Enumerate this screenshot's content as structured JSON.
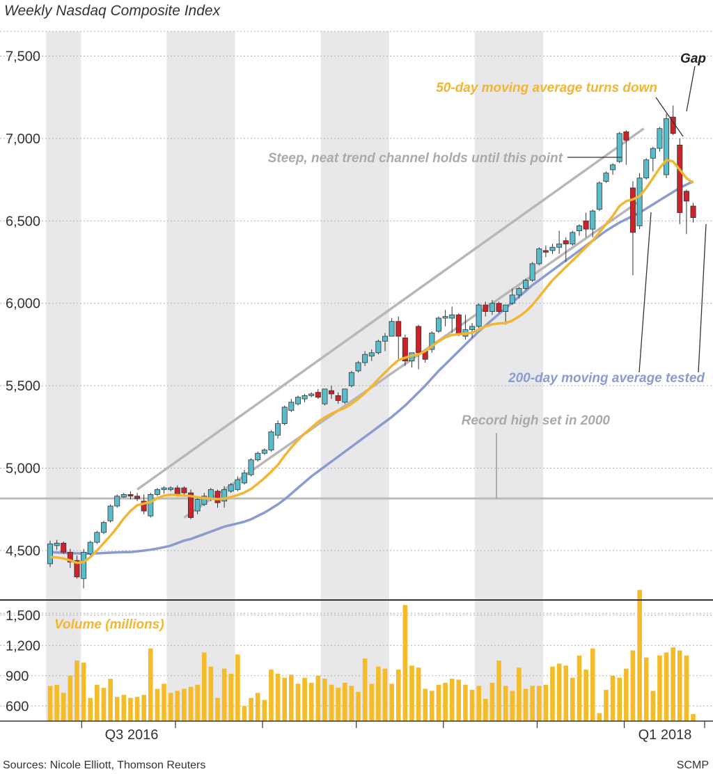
{
  "chart_data": {
    "type": "candlestick",
    "title": "Weekly Nasdaq Composite Index",
    "price_axis": {
      "ylim": [
        4200,
        7650
      ],
      "ticks": [
        4500,
        5000,
        5500,
        6000,
        6500,
        7000,
        7500
      ],
      "tick_labels": [
        "4,500",
        "5,000",
        "5,500",
        "6,000",
        "6,500",
        "7,000",
        "7,500"
      ]
    },
    "volume_axis": {
      "label": "Volume (millions)",
      "ylim": [
        450,
        1650
      ],
      "ticks": [
        600,
        900,
        1200,
        1500
      ],
      "tick_labels": [
        "600",
        "900",
        "1,200",
        "1,500"
      ]
    },
    "x_labels": [
      {
        "text": "Q3 2016",
        "week": 5
      },
      {
        "text": "Q1 2018",
        "week": 83
      }
    ],
    "period_shading": [
      [
        0,
        4
      ],
      [
        18,
        27
      ],
      [
        41,
        50
      ],
      [
        64,
        73
      ]
    ],
    "record_high": {
      "value": 4816,
      "label": "Record high set in 2000"
    },
    "trend_channel": {
      "upper": [
        [
          13,
          4870
        ],
        [
          88,
          7060
        ]
      ],
      "lower": [
        [
          20,
          4700
        ],
        [
          87,
          6610
        ]
      ]
    },
    "annotations": {
      "gap": "Gap",
      "ma50_turns": "50-day moving average turns down",
      "channel_holds": "Steep, neat trend channel holds until this point",
      "ma200_tested": "200-day moving average tested"
    },
    "colors": {
      "up": "#58bccb",
      "down": "#cc2229",
      "ma50": "#f2b632",
      "ma200": "#8a9bd0",
      "volume": "#f5bc2a",
      "shade": "#e8e8ea",
      "channel": "#b7b7b7",
      "text": "#333333"
    },
    "candles": [
      {
        "o": 4420,
        "h": 4560,
        "l": 4400,
        "c": 4540
      },
      {
        "o": 4530,
        "h": 4565,
        "l": 4505,
        "c": 4545
      },
      {
        "o": 4545,
        "h": 4555,
        "l": 4480,
        "c": 4490
      },
      {
        "o": 4490,
        "h": 4510,
        "l": 4395,
        "c": 4430
      },
      {
        "o": 4440,
        "h": 4470,
        "l": 4330,
        "c": 4340
      },
      {
        "o": 4330,
        "h": 4510,
        "l": 4270,
        "c": 4490
      },
      {
        "o": 4480,
        "h": 4560,
        "l": 4470,
        "c": 4550
      },
      {
        "o": 4550,
        "h": 4620,
        "l": 4540,
        "c": 4610
      },
      {
        "o": 4610,
        "h": 4680,
        "l": 4600,
        "c": 4670
      },
      {
        "o": 4680,
        "h": 4780,
        "l": 4670,
        "c": 4770
      },
      {
        "o": 4770,
        "h": 4840,
        "l": 4760,
        "c": 4830
      },
      {
        "o": 4825,
        "h": 4850,
        "l": 4820,
        "c": 4840
      },
      {
        "o": 4840,
        "h": 4860,
        "l": 4810,
        "c": 4830
      },
      {
        "o": 4830,
        "h": 4850,
        "l": 4800,
        "c": 4815
      },
      {
        "o": 4800,
        "h": 4840,
        "l": 4720,
        "c": 4740
      },
      {
        "o": 4710,
        "h": 4850,
        "l": 4700,
        "c": 4840
      },
      {
        "o": 4840,
        "h": 4880,
        "l": 4830,
        "c": 4870
      },
      {
        "o": 4870,
        "h": 4890,
        "l": 4845,
        "c": 4880
      },
      {
        "o": 4870,
        "h": 4890,
        "l": 4860,
        "c": 4880
      },
      {
        "o": 4880,
        "h": 4895,
        "l": 4830,
        "c": 4840
      },
      {
        "o": 4880,
        "h": 4890,
        "l": 4840,
        "c": 4850
      },
      {
        "o": 4850,
        "h": 4870,
        "l": 4690,
        "c": 4700
      },
      {
        "o": 4740,
        "h": 4830,
        "l": 4720,
        "c": 4810
      },
      {
        "o": 4780,
        "h": 4850,
        "l": 4770,
        "c": 4830
      },
      {
        "o": 4810,
        "h": 4880,
        "l": 4800,
        "c": 4870
      },
      {
        "o": 4860,
        "h": 4870,
        "l": 4760,
        "c": 4790
      },
      {
        "o": 4800,
        "h": 4890,
        "l": 4760,
        "c": 4870
      },
      {
        "o": 4860,
        "h": 4910,
        "l": 4850,
        "c": 4900
      },
      {
        "o": 4870,
        "h": 4950,
        "l": 4860,
        "c": 4930
      },
      {
        "o": 4910,
        "h": 4990,
        "l": 4900,
        "c": 4970
      },
      {
        "o": 4960,
        "h": 5060,
        "l": 4950,
        "c": 5050
      },
      {
        "o": 5050,
        "h": 5100,
        "l": 5040,
        "c": 5090
      },
      {
        "o": 5090,
        "h": 5120,
        "l": 5080,
        "c": 5110
      },
      {
        "o": 5110,
        "h": 5230,
        "l": 5100,
        "c": 5220
      },
      {
        "o": 5200,
        "h": 5290,
        "l": 5180,
        "c": 5270
      },
      {
        "o": 5270,
        "h": 5380,
        "l": 5260,
        "c": 5370
      },
      {
        "o": 5350,
        "h": 5420,
        "l": 5340,
        "c": 5400
      },
      {
        "o": 5390,
        "h": 5440,
        "l": 5380,
        "c": 5430
      },
      {
        "o": 5420,
        "h": 5450,
        "l": 5400,
        "c": 5440
      },
      {
        "o": 5440,
        "h": 5460,
        "l": 5430,
        "c": 5450
      },
      {
        "o": 5460,
        "h": 5480,
        "l": 5420,
        "c": 5430
      },
      {
        "o": 5390,
        "h": 5480,
        "l": 5380,
        "c": 5480
      },
      {
        "o": 5470,
        "h": 5500,
        "l": 5420,
        "c": 5450
      },
      {
        "o": 5440,
        "h": 5460,
        "l": 5390,
        "c": 5410
      },
      {
        "o": 5400,
        "h": 5480,
        "l": 5390,
        "c": 5480
      },
      {
        "o": 5500,
        "h": 5590,
        "l": 5490,
        "c": 5580
      },
      {
        "o": 5590,
        "h": 5650,
        "l": 5580,
        "c": 5640
      },
      {
        "o": 5640,
        "h": 5710,
        "l": 5620,
        "c": 5690
      },
      {
        "o": 5680,
        "h": 5720,
        "l": 5650,
        "c": 5700
      },
      {
        "o": 5700,
        "h": 5780,
        "l": 5690,
        "c": 5770
      },
      {
        "o": 5770,
        "h": 5820,
        "l": 5710,
        "c": 5800
      },
      {
        "o": 5800,
        "h": 5910,
        "l": 5800,
        "c": 5890
      },
      {
        "o": 5890,
        "h": 5920,
        "l": 5650,
        "c": 5800
      },
      {
        "o": 5790,
        "h": 5810,
        "l": 5620,
        "c": 5650
      },
      {
        "o": 5650,
        "h": 5700,
        "l": 5610,
        "c": 5700
      },
      {
        "o": 5860,
        "h": 5870,
        "l": 5600,
        "c": 5700
      },
      {
        "o": 5710,
        "h": 5720,
        "l": 5640,
        "c": 5660
      },
      {
        "o": 5720,
        "h": 5830,
        "l": 5700,
        "c": 5820
      },
      {
        "o": 5830,
        "h": 5920,
        "l": 5820,
        "c": 5910
      },
      {
        "o": 5910,
        "h": 5960,
        "l": 5860,
        "c": 5920
      },
      {
        "o": 5910,
        "h": 5980,
        "l": 5820,
        "c": 5930
      },
      {
        "o": 5930,
        "h": 5940,
        "l": 5800,
        "c": 5810
      },
      {
        "o": 5800,
        "h": 5930,
        "l": 5780,
        "c": 5840
      },
      {
        "o": 5840,
        "h": 5880,
        "l": 5790,
        "c": 5860
      },
      {
        "o": 5860,
        "h": 6000,
        "l": 5850,
        "c": 5990
      },
      {
        "o": 5990,
        "h": 6010,
        "l": 5920,
        "c": 5950
      },
      {
        "o": 5950,
        "h": 6020,
        "l": 5930,
        "c": 6000
      },
      {
        "o": 6000,
        "h": 6010,
        "l": 5940,
        "c": 5950
      },
      {
        "o": 5950,
        "h": 5990,
        "l": 5870,
        "c": 5990
      },
      {
        "o": 6000,
        "h": 6090,
        "l": 5990,
        "c": 6050
      },
      {
        "o": 6050,
        "h": 6100,
        "l": 6030,
        "c": 6090
      },
      {
        "o": 6090,
        "h": 6150,
        "l": 6080,
        "c": 6140
      },
      {
        "o": 6140,
        "h": 6250,
        "l": 6130,
        "c": 6240
      },
      {
        "o": 6240,
        "h": 6340,
        "l": 6230,
        "c": 6330
      },
      {
        "o": 6320,
        "h": 6350,
        "l": 6280,
        "c": 6310
      },
      {
        "o": 6320,
        "h": 6360,
        "l": 6300,
        "c": 6340
      },
      {
        "o": 6340,
        "h": 6440,
        "l": 6300,
        "c": 6360
      },
      {
        "o": 6380,
        "h": 6400,
        "l": 6250,
        "c": 6360
      },
      {
        "o": 6360,
        "h": 6440,
        "l": 6350,
        "c": 6430
      },
      {
        "o": 6440,
        "h": 6480,
        "l": 6410,
        "c": 6470
      },
      {
        "o": 6500,
        "h": 6550,
        "l": 6400,
        "c": 6450
      },
      {
        "o": 6450,
        "h": 6570,
        "l": 6400,
        "c": 6560
      },
      {
        "o": 6570,
        "h": 6740,
        "l": 6560,
        "c": 6730
      },
      {
        "o": 6740,
        "h": 6800,
        "l": 6730,
        "c": 6790
      },
      {
        "o": 6810,
        "h": 6850,
        "l": 6780,
        "c": 6840
      },
      {
        "o": 6860,
        "h": 7040,
        "l": 6850,
        "c": 7030
      },
      {
        "o": 7040,
        "h": 7050,
        "l": 6840,
        "c": 6990
      },
      {
        "o": 6700,
        "h": 6740,
        "l": 6170,
        "c": 6430
      },
      {
        "o": 6470,
        "h": 6790,
        "l": 6450,
        "c": 6760
      },
      {
        "o": 6760,
        "h": 6880,
        "l": 6750,
        "c": 6870
      },
      {
        "o": 6880,
        "h": 6950,
        "l": 6800,
        "c": 6940
      },
      {
        "o": 6940,
        "h": 7070,
        "l": 6920,
        "c": 7060
      },
      {
        "o": 6780,
        "h": 7150,
        "l": 6760,
        "c": 7120
      },
      {
        "o": 7130,
        "h": 7200,
        "l": 7020,
        "c": 7030
      },
      {
        "o": 6960,
        "h": 7000,
        "l": 6480,
        "c": 6550
      },
      {
        "o": 6680,
        "h": 6690,
        "l": 6420,
        "c": 6620
      },
      {
        "o": 6590,
        "h": 6610,
        "l": 6490,
        "c": 6520
      }
    ],
    "ma50": [
      4460,
      4458,
      4452,
      4440,
      4425,
      4430,
      4460,
      4500,
      4545,
      4590,
      4640,
      4695,
      4740,
      4775,
      4785,
      4795,
      4818,
      4833,
      4839,
      4836,
      4834,
      4830,
      4824,
      4818,
      4815,
      4812,
      4815,
      4825,
      4837,
      4852,
      4874,
      4905,
      4940,
      4978,
      5020,
      5075,
      5125,
      5170,
      5210,
      5245,
      5280,
      5308,
      5330,
      5350,
      5365,
      5390,
      5420,
      5455,
      5495,
      5540,
      5580,
      5620,
      5655,
      5670,
      5682,
      5690,
      5710,
      5740,
      5770,
      5793,
      5808,
      5812,
      5815,
      5822,
      5840,
      5860,
      5872,
      5878,
      5880,
      5895,
      5920,
      5950,
      5990,
      6040,
      6090,
      6140,
      6180,
      6220,
      6260,
      6300,
      6340,
      6380,
      6430,
      6480,
      6530,
      6590,
      6620,
      6630,
      6650,
      6700,
      6760,
      6820,
      6870,
      6860,
      6810,
      6760,
      6730
    ],
    "ma200": [
      4490,
      4488,
      4486,
      4484,
      4483,
      4482,
      4482,
      4483,
      4485,
      4487,
      4489,
      4490,
      4491,
      4495,
      4500,
      4505,
      4512,
      4520,
      4530,
      4545,
      4560,
      4570,
      4585,
      4600,
      4615,
      4630,
      4645,
      4655,
      4665,
      4675,
      4690,
      4710,
      4730,
      4755,
      4780,
      4810,
      4845,
      4880,
      4915,
      4950,
      4980,
      5010,
      5040,
      5070,
      5100,
      5130,
      5160,
      5190,
      5220,
      5250,
      5280,
      5310,
      5345,
      5380,
      5420,
      5460,
      5500,
      5545,
      5590,
      5630,
      5670,
      5710,
      5750,
      5790,
      5830,
      5865,
      5900,
      5935,
      5970,
      6005,
      6040,
      6075,
      6110,
      6140,
      6170,
      6200,
      6230,
      6260,
      6290,
      6320,
      6350,
      6380,
      6410,
      6440,
      6465,
      6490,
      6510,
      6530,
      6550,
      6575,
      6600,
      6625,
      6650,
      6675,
      6700,
      6720,
      6740
    ],
    "volume": [
      800,
      810,
      730,
      900,
      1050,
      1030,
      680,
      810,
      780,
      870,
      690,
      710,
      680,
      690,
      710,
      1170,
      770,
      820,
      730,
      750,
      770,
      790,
      810,
      1130,
      990,
      680,
      970,
      920,
      1110,
      600,
      680,
      730,
      660,
      960,
      920,
      880,
      910,
      820,
      880,
      830,
      900,
      870,
      810,
      780,
      830,
      800,
      740,
      1070,
      820,
      990,
      970,
      820,
      960,
      1600,
      1000,
      980,
      770,
      750,
      810,
      830,
      870,
      860,
      810,
      760,
      800,
      670,
      830,
      1050,
      800,
      750,
      980,
      770,
      800,
      800,
      810,
      990,
      1020,
      1000,
      880,
      1100,
      960,
      1170,
      530,
      760,
      900,
      880,
      970,
      1150,
      1750,
      1080,
      750,
      1100,
      1130,
      1180,
      1150,
      1100,
      520
    ]
  },
  "footer": {
    "sources": "Sources: Nicole Elliott, Thomson Reuters",
    "credit": "SCMP"
  }
}
